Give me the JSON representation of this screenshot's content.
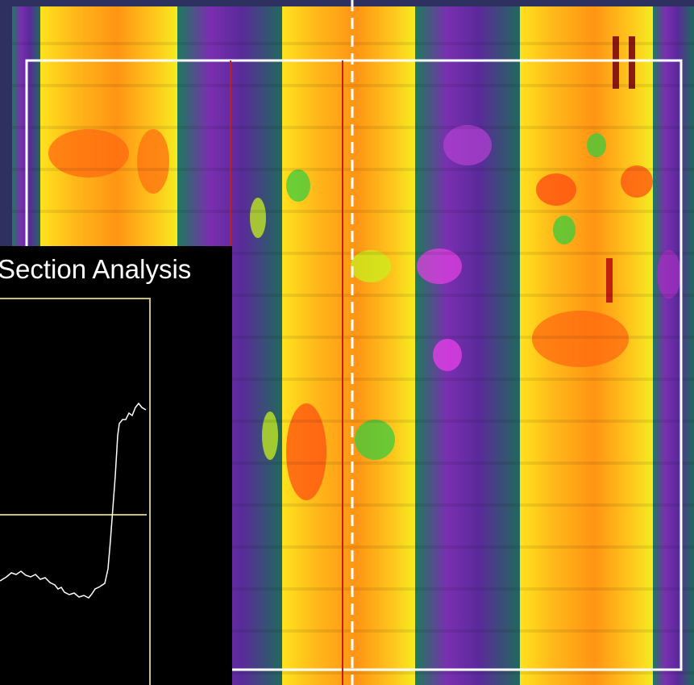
{
  "panel": {
    "title": "Section Analysis"
  }
}
